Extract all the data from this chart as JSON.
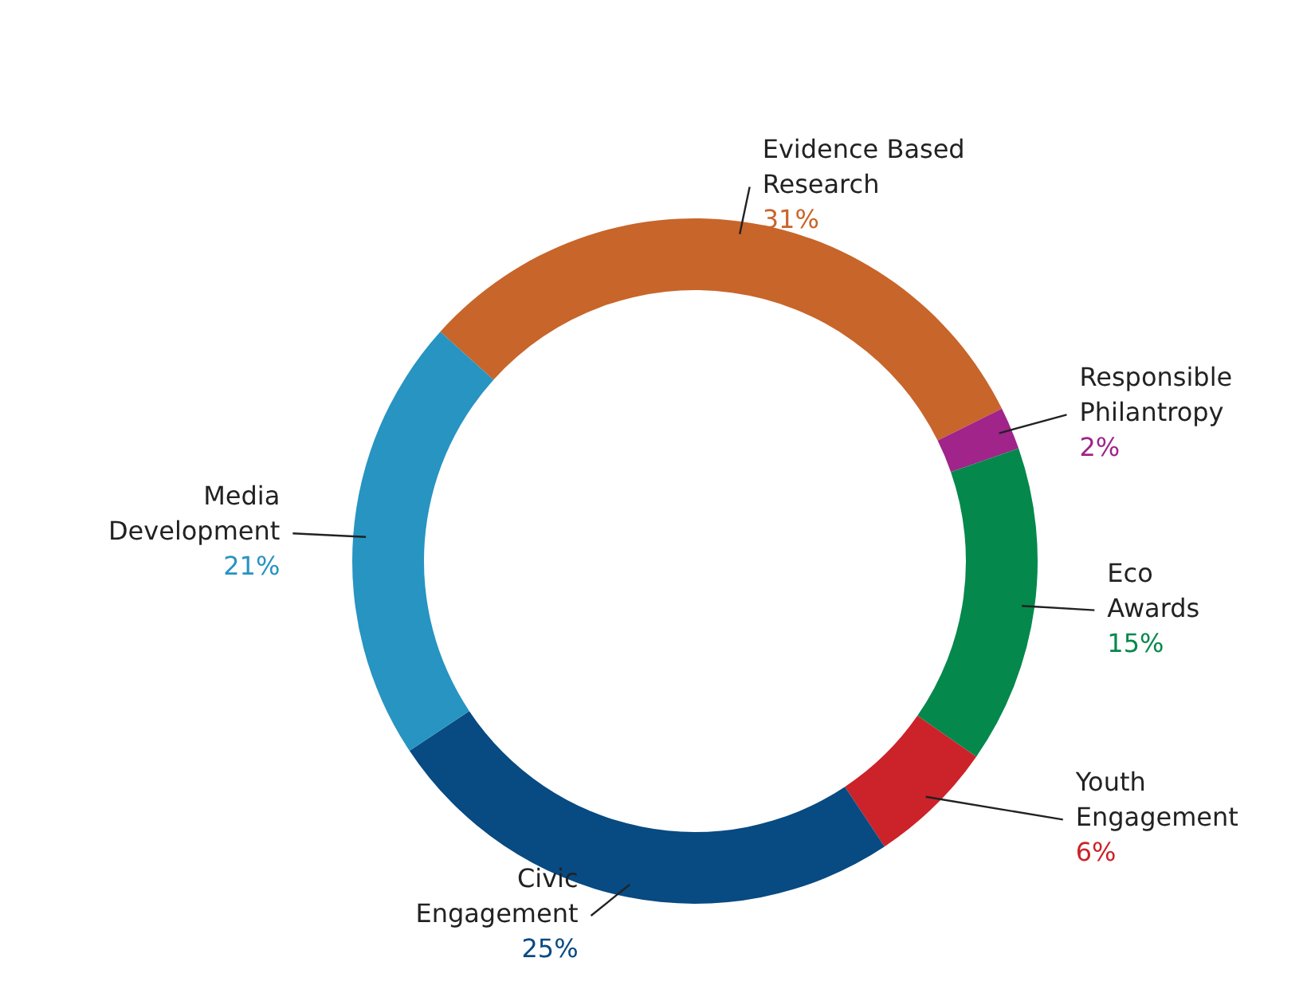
{
  "chart_data": {
    "type": "donut",
    "categories": [
      "Evidence Based Research",
      "Responsible Philantropy",
      "Eco Awards",
      "Youth Engagement",
      "Civic Engagement",
      "Media Development"
    ],
    "values": [
      31,
      2,
      15,
      6,
      25,
      21
    ],
    "colors": [
      "#c8652a",
      "#a0248a",
      "#05884c",
      "#cc2229",
      "#084a82",
      "#2794c2"
    ],
    "value_labels": [
      "31%",
      "2%",
      "15%",
      "6%",
      "25%",
      "21%"
    ]
  }
}
